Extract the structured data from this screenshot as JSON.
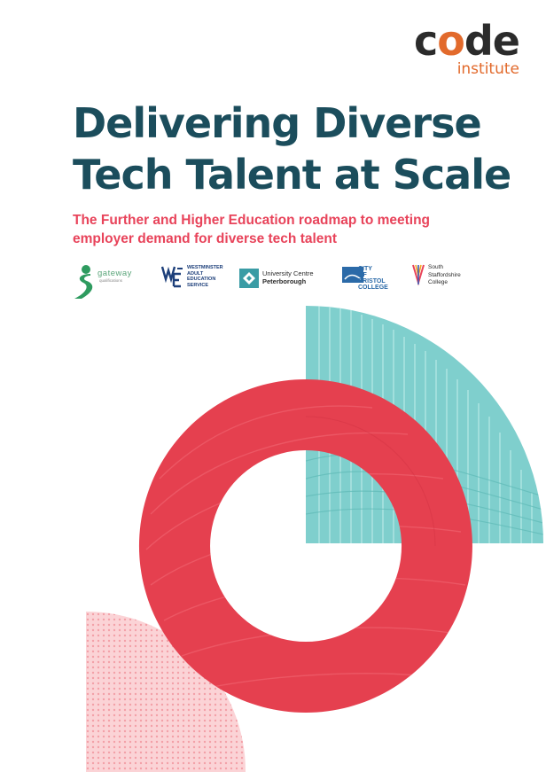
{
  "brand": {
    "word_prefix": "c",
    "word_accent": "o",
    "word_suffix": "de",
    "sub": "institute"
  },
  "title": {
    "line1": "Delivering Diverse",
    "line2": "Tech Talent at Scale"
  },
  "subtitle": {
    "line1": "The Further and Higher Education roadmap to meeting",
    "line2": "employer demand for diverse tech talent"
  },
  "partners": {
    "gateway": {
      "name": "gateway",
      "tagline": "qualifications"
    },
    "waes": {
      "lines": [
        "WESTMINSTER",
        "ADULT",
        "EDUCATION",
        "SERVICE"
      ]
    },
    "ucp": {
      "line1": "University Centre",
      "line2": "Peterborough"
    },
    "cbc": {
      "lines": [
        "CITY",
        "OF",
        "BRISTOL",
        "COLLEGE"
      ]
    },
    "ssc": {
      "lines": [
        "South",
        "Staffordshire",
        "College"
      ]
    }
  },
  "colors": {
    "title": "#1b4d5c",
    "subtitle": "#e8435a",
    "brand_dark": "#2b2b2b",
    "brand_accent": "#e26a2c",
    "ring": "#e5404f",
    "quarter": "#7fcfcd",
    "dots": "#f4a7ad"
  },
  "icons": {
    "gateway": "gateway-logo-icon",
    "waes": "waes-logo-icon",
    "ucp": "ucp-logo-icon",
    "cbc": "city-of-bristol-logo-icon",
    "ssc": "south-staffordshire-logo-icon"
  }
}
